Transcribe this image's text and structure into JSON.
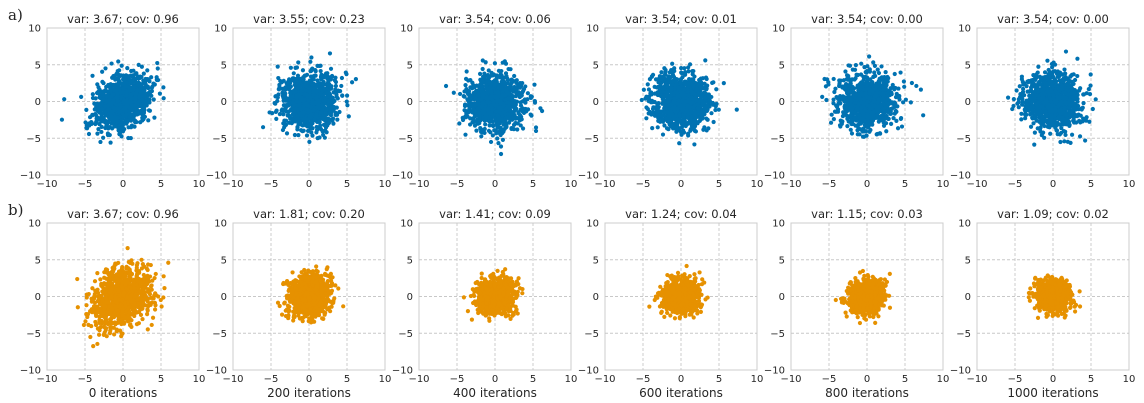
{
  "figure": {
    "row_labels": [
      "a)",
      "b)"
    ],
    "colors": {
      "row_a": "#0072b2",
      "row_b": "#e69100",
      "grid": "#c8c8c8",
      "frame": "#cccccc"
    },
    "x_tick_labels": [
      "−10",
      "−5",
      "0",
      "5",
      "10"
    ],
    "y_tick_labels": [
      "10",
      "5",
      "0",
      "−5",
      "−10"
    ],
    "iteration_labels": [
      "0 iterations",
      "200 iterations",
      "400 iterations",
      "600 iterations",
      "800 iterations",
      "1000 iterations"
    ]
  },
  "chart_data": [
    {
      "type": "scatter",
      "row": "a",
      "title": "var: 3.67; cov: 0.96",
      "variance": 3.67,
      "covariance": 0.96,
      "xlim": [
        -10,
        10
      ],
      "ylim": [
        -10,
        10
      ],
      "grid": true,
      "color": "#0072b2",
      "n_points": 1000
    },
    {
      "type": "scatter",
      "row": "a",
      "title": "var: 3.55; cov: 0.23",
      "variance": 3.55,
      "covariance": 0.23,
      "xlim": [
        -10,
        10
      ],
      "ylim": [
        -10,
        10
      ],
      "grid": true,
      "color": "#0072b2",
      "n_points": 1000
    },
    {
      "type": "scatter",
      "row": "a",
      "title": "var: 3.54; cov: 0.06",
      "variance": 3.54,
      "covariance": 0.06,
      "xlim": [
        -10,
        10
      ],
      "ylim": [
        -10,
        10
      ],
      "grid": true,
      "color": "#0072b2",
      "n_points": 1000
    },
    {
      "type": "scatter",
      "row": "a",
      "title": "var: 3.54; cov: 0.01",
      "variance": 3.54,
      "covariance": 0.01,
      "xlim": [
        -10,
        10
      ],
      "ylim": [
        -10,
        10
      ],
      "grid": true,
      "color": "#0072b2",
      "n_points": 1000
    },
    {
      "type": "scatter",
      "row": "a",
      "title": "var: 3.54; cov: 0.00",
      "variance": 3.54,
      "covariance": 0.0,
      "xlim": [
        -10,
        10
      ],
      "ylim": [
        -10,
        10
      ],
      "grid": true,
      "color": "#0072b2",
      "n_points": 1000
    },
    {
      "type": "scatter",
      "row": "a",
      "title": "var: 3.54; cov: 0.00",
      "variance": 3.54,
      "covariance": 0.0,
      "xlim": [
        -10,
        10
      ],
      "ylim": [
        -10,
        10
      ],
      "grid": true,
      "color": "#0072b2",
      "n_points": 1000
    },
    {
      "type": "scatter",
      "row": "b",
      "title": "var: 3.67; cov: 0.96",
      "variance": 3.67,
      "covariance": 0.96,
      "xlim": [
        -10,
        10
      ],
      "ylim": [
        -10,
        10
      ],
      "grid": true,
      "color": "#e69100",
      "n_points": 1000,
      "xlabel": "0 iterations"
    },
    {
      "type": "scatter",
      "row": "b",
      "title": "var: 1.81; cov: 0.20",
      "variance": 1.81,
      "covariance": 0.2,
      "xlim": [
        -10,
        10
      ],
      "ylim": [
        -10,
        10
      ],
      "grid": true,
      "color": "#e69100",
      "n_points": 1000,
      "xlabel": "200 iterations"
    },
    {
      "type": "scatter",
      "row": "b",
      "title": "var: 1.41; cov: 0.09",
      "variance": 1.41,
      "covariance": 0.09,
      "xlim": [
        -10,
        10
      ],
      "ylim": [
        -10,
        10
      ],
      "grid": true,
      "color": "#e69100",
      "n_points": 1000,
      "xlabel": "400 iterations"
    },
    {
      "type": "scatter",
      "row": "b",
      "title": "var: 1.24; cov: 0.04",
      "variance": 1.24,
      "covariance": 0.04,
      "xlim": [
        -10,
        10
      ],
      "ylim": [
        -10,
        10
      ],
      "grid": true,
      "color": "#e69100",
      "n_points": 1000,
      "xlabel": "600 iterations"
    },
    {
      "type": "scatter",
      "row": "b",
      "title": "var: 1.15; cov: 0.03",
      "variance": 1.15,
      "covariance": 0.03,
      "xlim": [
        -10,
        10
      ],
      "ylim": [
        -10,
        10
      ],
      "grid": true,
      "color": "#e69100",
      "n_points": 1000,
      "xlabel": "800 iterations"
    },
    {
      "type": "scatter",
      "row": "b",
      "title": "var: 1.09; cov: 0.02",
      "variance": 1.09,
      "covariance": 0.02,
      "xlim": [
        -10,
        10
      ],
      "ylim": [
        -10,
        10
      ],
      "grid": true,
      "color": "#e69100",
      "n_points": 1000,
      "xlabel": "1000 iterations"
    }
  ]
}
